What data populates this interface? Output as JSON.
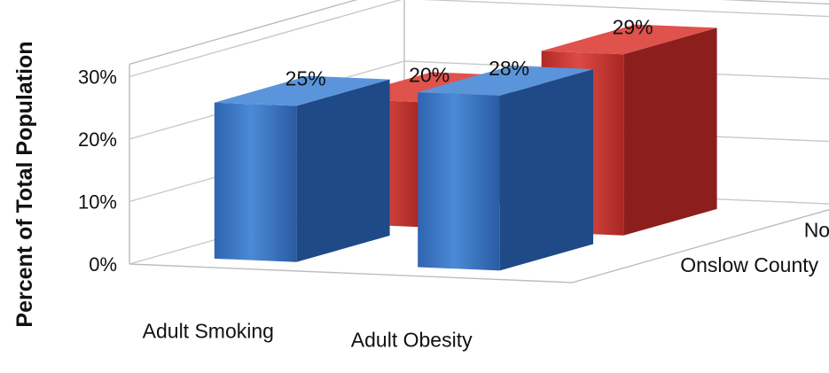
{
  "chart_data": {
    "type": "bar",
    "subtype": "3d-clustered-column",
    "title": "",
    "xlabel": "",
    "ylabel": "Percent of Total Population",
    "ylim": [
      0,
      30
    ],
    "yticks": [
      {
        "value": 0,
        "label": "0%"
      },
      {
        "value": 10,
        "label": "10%"
      },
      {
        "value": 20,
        "label": "20%"
      },
      {
        "value": 30,
        "label": "30%"
      }
    ],
    "categories": [
      "Adult Smoking",
      "Adult Obesity"
    ],
    "series": [
      {
        "name": "Onslow County",
        "values": [
          25,
          28
        ],
        "labels": [
          "25%",
          "28%"
        ],
        "color": "#3a78c8"
      },
      {
        "name": "North Carolina",
        "values": [
          20,
          29
        ],
        "labels": [
          "20%",
          "29%"
        ],
        "color": "#cc3a36"
      }
    ],
    "grid": true
  }
}
